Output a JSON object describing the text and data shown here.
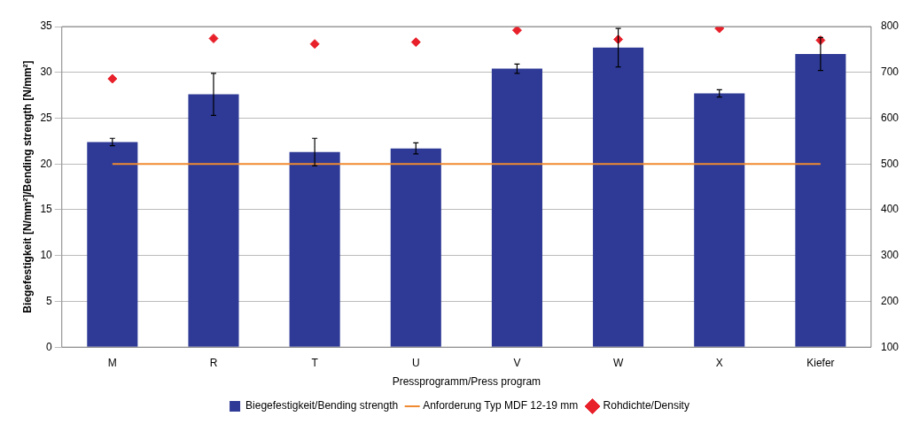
{
  "chart_data": {
    "type": "bar",
    "xlabel": "Pressprogramm/Press program",
    "ylabel": "Biegefestigkeit [N/mm²]/Bending strength [N/mm²]",
    "categories": [
      "M",
      "R",
      "T",
      "U",
      "V",
      "W",
      "X",
      "Kiefer"
    ],
    "series": [
      {
        "name": "Biegefestigkeit/Bending strength",
        "color": "#2e3a96",
        "values": [
          22.4,
          27.6,
          21.3,
          21.7,
          30.4,
          32.7,
          27.7,
          32.0
        ],
        "errors": [
          0.4,
          2.3,
          1.5,
          0.6,
          0.5,
          2.1,
          0.4,
          1.8
        ]
      },
      {
        "name": "Anforderung Typ MDF 12-19 mm",
        "type": "line",
        "color": "#f08a30",
        "values": [
          20,
          20,
          20,
          20,
          20,
          20,
          20,
          20
        ],
        "marker": "none"
      },
      {
        "name": "Rohdichte/Density",
        "type": "scatter",
        "axis": "y2",
        "color": "#e8202a",
        "values": [
          686,
          774,
          762,
          766,
          792,
          772,
          796,
          770
        ],
        "marker": "diamond"
      }
    ],
    "ylim": [
      0,
      35
    ],
    "yticks": [
      0,
      5,
      10,
      15,
      20,
      25,
      30,
      35
    ],
    "y2lim": [
      100,
      800
    ],
    "y2ticks": [
      100,
      200,
      300,
      400,
      500,
      600,
      700,
      800
    ],
    "grid": "y",
    "legend": "bottom"
  }
}
